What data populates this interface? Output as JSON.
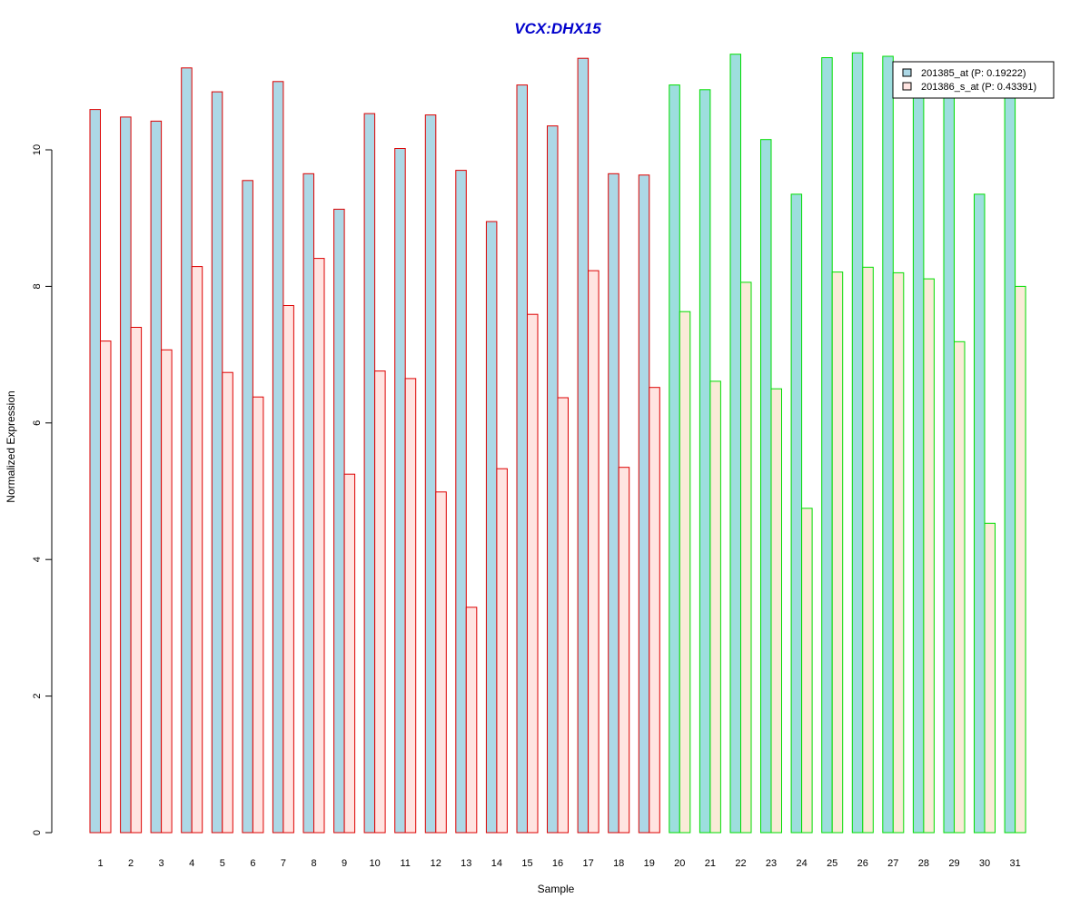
{
  "chart_data": {
    "type": "bar",
    "title": "VCX:DHX15",
    "xlabel": "Sample",
    "ylabel": "Normalized Expression",
    "ylim": [
      0,
      11.5
    ],
    "yticks": [
      0,
      2,
      4,
      6,
      8,
      10
    ],
    "grid": false,
    "legend_position": "top-right",
    "categories": [
      "1",
      "2",
      "3",
      "4",
      "5",
      "6",
      "7",
      "8",
      "9",
      "10",
      "11",
      "12",
      "13",
      "14",
      "15",
      "16",
      "17",
      "18",
      "19",
      "20",
      "21",
      "22",
      "23",
      "24",
      "25",
      "26",
      "27",
      "28",
      "29",
      "30",
      "31"
    ],
    "groups": [
      {
        "count": 19,
        "outline_color": "#dd0000",
        "fill_colors": [
          "#add8e6",
          "#ffe4e1"
        ]
      },
      {
        "count": 12,
        "outline_color": "#00dd00",
        "fill_colors": [
          "#9ddede",
          "#faebd7"
        ]
      }
    ],
    "series": [
      {
        "name": "201385_at (P: 0.19222)",
        "legend_fill": "#add8e6",
        "values": [
          10.59,
          10.48,
          10.42,
          11.2,
          10.85,
          9.55,
          11.0,
          9.65,
          9.13,
          10.53,
          10.02,
          10.51,
          9.7,
          8.95,
          10.95,
          10.35,
          11.34,
          9.65,
          9.63,
          10.95,
          10.88,
          11.4,
          10.15,
          9.35,
          11.35,
          11.42,
          11.37,
          10.8,
          10.8,
          9.35,
          10.8
        ]
      },
      {
        "name": "201386_s_at (P: 0.43391)",
        "legend_fill": "#ffe4e1",
        "values": [
          7.2,
          7.4,
          7.07,
          8.29,
          6.74,
          6.38,
          7.72,
          8.41,
          5.25,
          6.76,
          6.65,
          4.99,
          3.3,
          5.33,
          7.59,
          6.37,
          8.23,
          5.35,
          6.52,
          7.63,
          6.61,
          8.06,
          6.5,
          4.75,
          8.21,
          8.28,
          8.2,
          8.11,
          7.19,
          4.53,
          8.0
        ]
      }
    ]
  }
}
